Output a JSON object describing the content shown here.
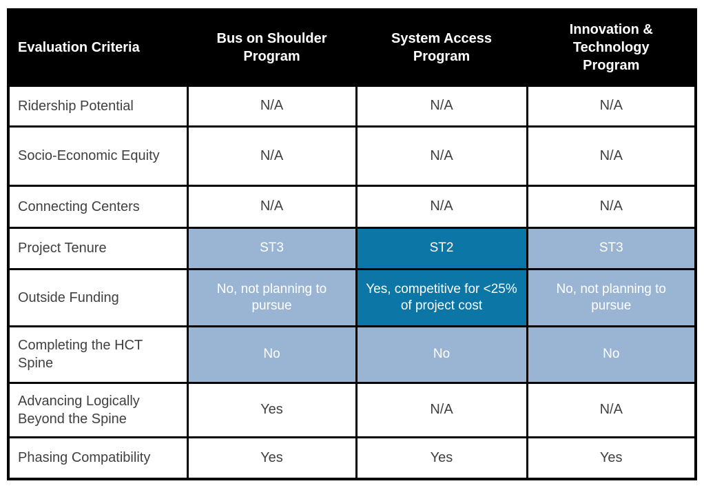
{
  "colors": {
    "header_bg": "#000000",
    "header_text": "#ffffff",
    "body_text": "#404040",
    "light_blue": "#9ab5d4",
    "dark_blue": "#0c76a6"
  },
  "table": {
    "columns": [
      {
        "label": "Evaluation Criteria"
      },
      {
        "label": "Bus on Shoulder Program"
      },
      {
        "label": "System Access Program"
      },
      {
        "label": "Innovation & Technology Program"
      }
    ],
    "rows": [
      {
        "criteria": "Ridership Potential",
        "cells": [
          {
            "text": "N/A",
            "style": "plain"
          },
          {
            "text": "N/A",
            "style": "plain"
          },
          {
            "text": "N/A",
            "style": "plain"
          }
        ]
      },
      {
        "criteria": "Socio-Economic Equity",
        "cells": [
          {
            "text": "N/A",
            "style": "plain"
          },
          {
            "text": "N/A",
            "style": "plain"
          },
          {
            "text": "N/A",
            "style": "plain"
          }
        ]
      },
      {
        "criteria": "Connecting Centers",
        "cells": [
          {
            "text": "N/A",
            "style": "plain"
          },
          {
            "text": "N/A",
            "style": "plain"
          },
          {
            "text": "N/A",
            "style": "plain"
          }
        ]
      },
      {
        "criteria": "Project Tenure",
        "cells": [
          {
            "text": "ST3",
            "style": "light"
          },
          {
            "text": "ST2",
            "style": "dark"
          },
          {
            "text": "ST3",
            "style": "light"
          }
        ]
      },
      {
        "criteria": "Outside Funding",
        "cells": [
          {
            "text": "No, not planning to pursue",
            "style": "light"
          },
          {
            "text": "Yes, competitive for <25% of project cost",
            "style": "dark"
          },
          {
            "text": "No, not planning to pursue",
            "style": "light"
          }
        ]
      },
      {
        "criteria": "Completing the HCT Spine",
        "cells": [
          {
            "text": "No",
            "style": "light"
          },
          {
            "text": "No",
            "style": "light"
          },
          {
            "text": "No",
            "style": "light"
          }
        ]
      },
      {
        "criteria": "Advancing Logically Beyond the Spine",
        "cells": [
          {
            "text": "Yes",
            "style": "plain"
          },
          {
            "text": "N/A",
            "style": "plain"
          },
          {
            "text": "N/A",
            "style": "plain"
          }
        ]
      },
      {
        "criteria": "Phasing Compatibility",
        "cells": [
          {
            "text": "Yes",
            "style": "plain"
          },
          {
            "text": "Yes",
            "style": "plain"
          },
          {
            "text": "Yes",
            "style": "plain"
          }
        ]
      }
    ]
  }
}
